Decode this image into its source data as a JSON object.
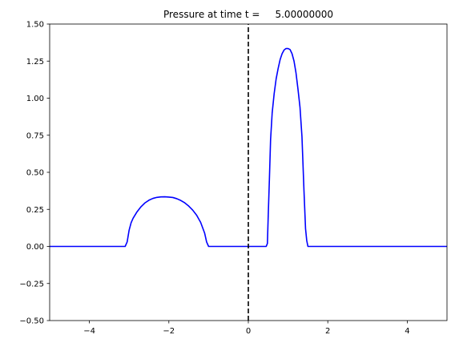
{
  "chart_data": {
    "type": "line",
    "title": "Pressure at time t =     5.00000000",
    "xlabel": "",
    "ylabel": "",
    "xlim": [
      -5,
      5
    ],
    "ylim": [
      -0.5,
      1.5
    ],
    "x_ticks": [
      -4,
      -2,
      0,
      2,
      4
    ],
    "x_tick_labels": [
      "−4",
      "−2",
      "0",
      "2",
      "4"
    ],
    "y_ticks": [
      -0.5,
      -0.25,
      0.0,
      0.25,
      0.5,
      0.75,
      1.0,
      1.25,
      1.5
    ],
    "y_tick_labels": [
      "−0.50",
      "−0.25",
      "0.00",
      "0.25",
      "0.50",
      "0.75",
      "1.00",
      "1.25",
      "1.50"
    ],
    "grid": false,
    "series": [
      {
        "color": "#0000ff",
        "line_style": "solid",
        "x": [
          -5,
          -3.1,
          -3.05,
          -3.0,
          -2.95,
          -2.9,
          -2.8,
          -2.7,
          -2.6,
          -2.5,
          -2.4,
          -2.3,
          -2.2,
          -2.1,
          -2.0,
          -1.9,
          -1.8,
          -1.7,
          -1.6,
          -1.5,
          -1.4,
          -1.3,
          -1.2,
          -1.1,
          -1.05,
          -1.0,
          -0.95,
          0.45,
          0.48,
          0.5,
          0.53,
          0.56,
          0.6,
          0.65,
          0.7,
          0.75,
          0.8,
          0.85,
          0.9,
          0.95,
          1.0,
          1.05,
          1.1,
          1.15,
          1.2,
          1.25,
          1.3,
          1.35,
          1.4,
          1.44,
          1.47,
          1.5,
          1.52,
          1.55,
          5
        ],
        "y": [
          0.0,
          0.0,
          0.03,
          0.11,
          0.16,
          0.19,
          0.234,
          0.268,
          0.294,
          0.312,
          0.324,
          0.331,
          0.334,
          0.335,
          0.333,
          0.33,
          0.322,
          0.31,
          0.294,
          0.272,
          0.245,
          0.21,
          0.162,
          0.09,
          0.03,
          0.0,
          0.0,
          0.0,
          0.02,
          0.2,
          0.45,
          0.72,
          0.9,
          1.03,
          1.13,
          1.2,
          1.26,
          1.3,
          1.325,
          1.335,
          1.335,
          1.328,
          1.3,
          1.25,
          1.17,
          1.06,
          0.94,
          0.74,
          0.38,
          0.12,
          0.04,
          0.0,
          0.0,
          0.0,
          0.0
        ]
      },
      {
        "color": "#000000",
        "line_style": "dashed",
        "x": [
          0,
          0
        ],
        "y": [
          -0.5,
          1.5
        ]
      }
    ]
  }
}
